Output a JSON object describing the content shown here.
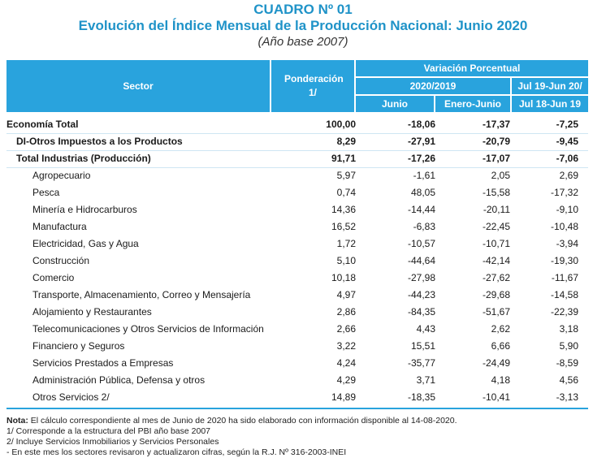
{
  "header": {
    "cuadro": "CUADRO Nº 01",
    "title": "Evolución del Índice Mensual de la Producción Nacional: Junio 2020",
    "subtitle": "(Año base 2007)"
  },
  "table_header": {
    "sector": "Sector",
    "ponderacion": "Ponderación 1/",
    "variacion": "Variación Porcentual",
    "period_2020_2019": "2020/2019",
    "junio": "Junio",
    "enero_junio": "Enero-Junio",
    "jul19_jun20": "Jul 19-Jun 20/",
    "jul18_jun19": "Jul 18-Jun 19"
  },
  "rows": [
    {
      "label": "Economía Total",
      "pond": "100,00",
      "junio": "-18,06",
      "enero_junio": "-17,37",
      "anual": "-7,25"
    },
    {
      "label": "DI-Otros Impuestos a los Productos",
      "pond": "8,29",
      "junio": "-27,91",
      "enero_junio": "-20,79",
      "anual": "-9,45"
    },
    {
      "label": "Total  Industrias (Producción)",
      "pond": "91,71",
      "junio": "-17,26",
      "enero_junio": "-17,07",
      "anual": "-7,06"
    },
    {
      "label": "Agropecuario",
      "pond": "5,97",
      "junio": "-1,61",
      "enero_junio": "2,05",
      "anual": "2,69"
    },
    {
      "label": "Pesca",
      "pond": "0,74",
      "junio": "48,05",
      "enero_junio": "-15,58",
      "anual": "-17,32"
    },
    {
      "label": "Minería e Hidrocarburos",
      "pond": "14,36",
      "junio": "-14,44",
      "enero_junio": "-20,11",
      "anual": "-9,10"
    },
    {
      "label": "Manufactura",
      "pond": "16,52",
      "junio": "-6,83",
      "enero_junio": "-22,45",
      "anual": "-10,48"
    },
    {
      "label": "Electricidad, Gas y Agua",
      "pond": "1,72",
      "junio": "-10,57",
      "enero_junio": "-10,71",
      "anual": "-3,94"
    },
    {
      "label": "Construcción",
      "pond": "5,10",
      "junio": "-44,64",
      "enero_junio": "-42,14",
      "anual": "-19,30"
    },
    {
      "label": "Comercio",
      "pond": "10,18",
      "junio": "-27,98",
      "enero_junio": "-27,62",
      "anual": "-11,67"
    },
    {
      "label": "Transporte, Almacenamiento, Correo y Mensajería",
      "pond": "4,97",
      "junio": "-44,23",
      "enero_junio": "-29,68",
      "anual": "-14,58"
    },
    {
      "label": "Alojamiento y Restaurantes",
      "pond": "2,86",
      "junio": "-84,35",
      "enero_junio": "-51,67",
      "anual": "-22,39"
    },
    {
      "label": "Telecomunicaciones y Otros Servicios de Información",
      "pond": "2,66",
      "junio": "4,43",
      "enero_junio": "2,62",
      "anual": "3,18"
    },
    {
      "label": "Financiero y Seguros",
      "pond": "3,22",
      "junio": "15,51",
      "enero_junio": "6,66",
      "anual": "5,90"
    },
    {
      "label": "Servicios Prestados a Empresas",
      "pond": "4,24",
      "junio": "-35,77",
      "enero_junio": "-24,49",
      "anual": "-8,59"
    },
    {
      "label": "Administración Pública, Defensa y otros",
      "pond": "4,29",
      "junio": "3,71",
      "enero_junio": "4,18",
      "anual": "4,56"
    },
    {
      "label": "Otros Servicios 2/",
      "pond": "14,89",
      "junio": "-18,35",
      "enero_junio": "-10,41",
      "anual": "-3,13"
    }
  ],
  "notes": {
    "nota_label": "Nota:",
    "nota_text": "El cálculo correspondiente al mes de Junio de 2020 ha sido elaborado con información disponible al 14-08-2020.",
    "n1": "1/ Corresponde a la estructura del PBI año base 2007",
    "n2": "2/ Incluye Servicios Inmobiliarios y Servicios Personales",
    "n3": "- En este mes los sectores revisaron y actualizaron cifras, según la R.J. Nº 316-2003-INEI"
  },
  "colors": {
    "accent": "#1f93c8",
    "header_bg": "#29a3dd"
  }
}
